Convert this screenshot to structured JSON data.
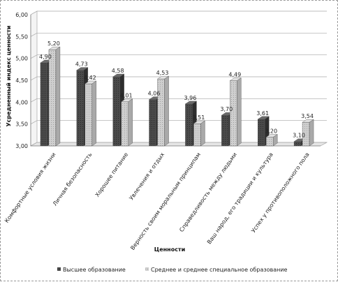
{
  "chart_data": {
    "type": "bar",
    "ylabel": "Усредненный индекс ценности",
    "xlabel": "Ценности",
    "ylim": [
      3.0,
      6.0
    ],
    "ytick_labels": [
      "3,00",
      "3,50",
      "4,00",
      "4,50",
      "5,00",
      "5,50",
      "6,00"
    ],
    "yticks": [
      3.0,
      3.5,
      4.0,
      4.5,
      5.0,
      5.5,
      6.0
    ],
    "grid": true,
    "legend_position": "bottom",
    "categories": [
      "Комфортные условия жизни",
      "Личная безопасность",
      "Хорошее питание",
      "Увлечения и отдых",
      "Верность своим моральным принципам",
      "Справедливость между людьми",
      "Ваш народ, его традиции и культура",
      "Успех у противоположного пола"
    ],
    "series": [
      {
        "name": "Высшее образование",
        "values": [
          4.9,
          4.73,
          4.58,
          4.06,
          3.96,
          3.7,
          3.61,
          3.1
        ],
        "labels": [
          "4,90",
          "4,73",
          "4,58",
          "4,06",
          "3,96",
          "3,70",
          "3,61",
          "3,10"
        ],
        "color": "#4a4a4a"
      },
      {
        "name": "Среднее и среднее специальное образование",
        "values": [
          5.2,
          4.42,
          4.01,
          4.53,
          3.51,
          4.49,
          3.2,
          3.54
        ],
        "labels": [
          "5,20",
          "4,42",
          "4,01",
          "4,53",
          "3,51",
          "4,49",
          "3,20",
          "3,54"
        ],
        "color": "#c8c8c8"
      }
    ]
  }
}
